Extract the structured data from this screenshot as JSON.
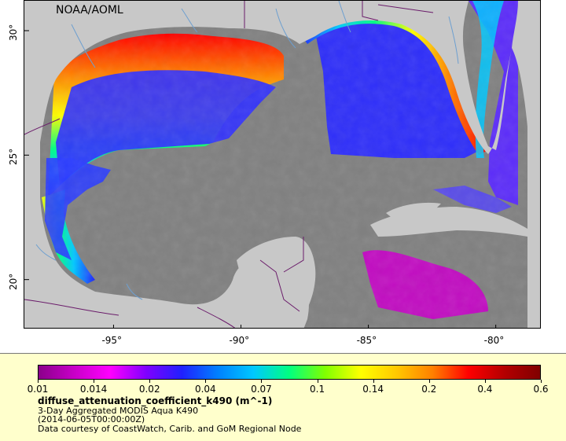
{
  "map": {
    "brand": "NOAA/AOML",
    "lon_ticks": [
      {
        "value": -95,
        "label": "-95°"
      },
      {
        "value": -90,
        "label": "-90°"
      },
      {
        "value": -85,
        "label": "-85°"
      },
      {
        "value": -80,
        "label": "-80°"
      }
    ],
    "lat_ticks": [
      {
        "value": 30,
        "label": "30°"
      },
      {
        "value": 25,
        "label": "25°"
      },
      {
        "value": 20,
        "label": "20°"
      }
    ],
    "colors": {
      "land": "#c8c8c8",
      "no_data": "#808080",
      "rivers": "#6d9fd0",
      "borders": "#6a1b6a"
    }
  },
  "legend": {
    "ticks": [
      "0.01",
      "0.014",
      "0.02",
      "0.04",
      "0.07",
      "0.1",
      "0.14",
      "0.2",
      "0.4",
      "0.6"
    ],
    "title": "diffuse_attenuation_coefficient_k490 (m^-1)",
    "line1": "3-Day Aggregated MODIS Aqua K490",
    "line2": "(2014-06-05T00:00:00Z)",
    "line3": "Data courtesy of CoastWatch, Carib. and GoM Regional Node",
    "colormap": [
      "#8b008b",
      "#c800c8",
      "#ff00ff",
      "#8000ff",
      "#2020ff",
      "#0080ff",
      "#00c8ff",
      "#00ff80",
      "#80ff00",
      "#ffff00",
      "#ffc800",
      "#ff8000",
      "#ff0000",
      "#b40000",
      "#800000"
    ]
  }
}
